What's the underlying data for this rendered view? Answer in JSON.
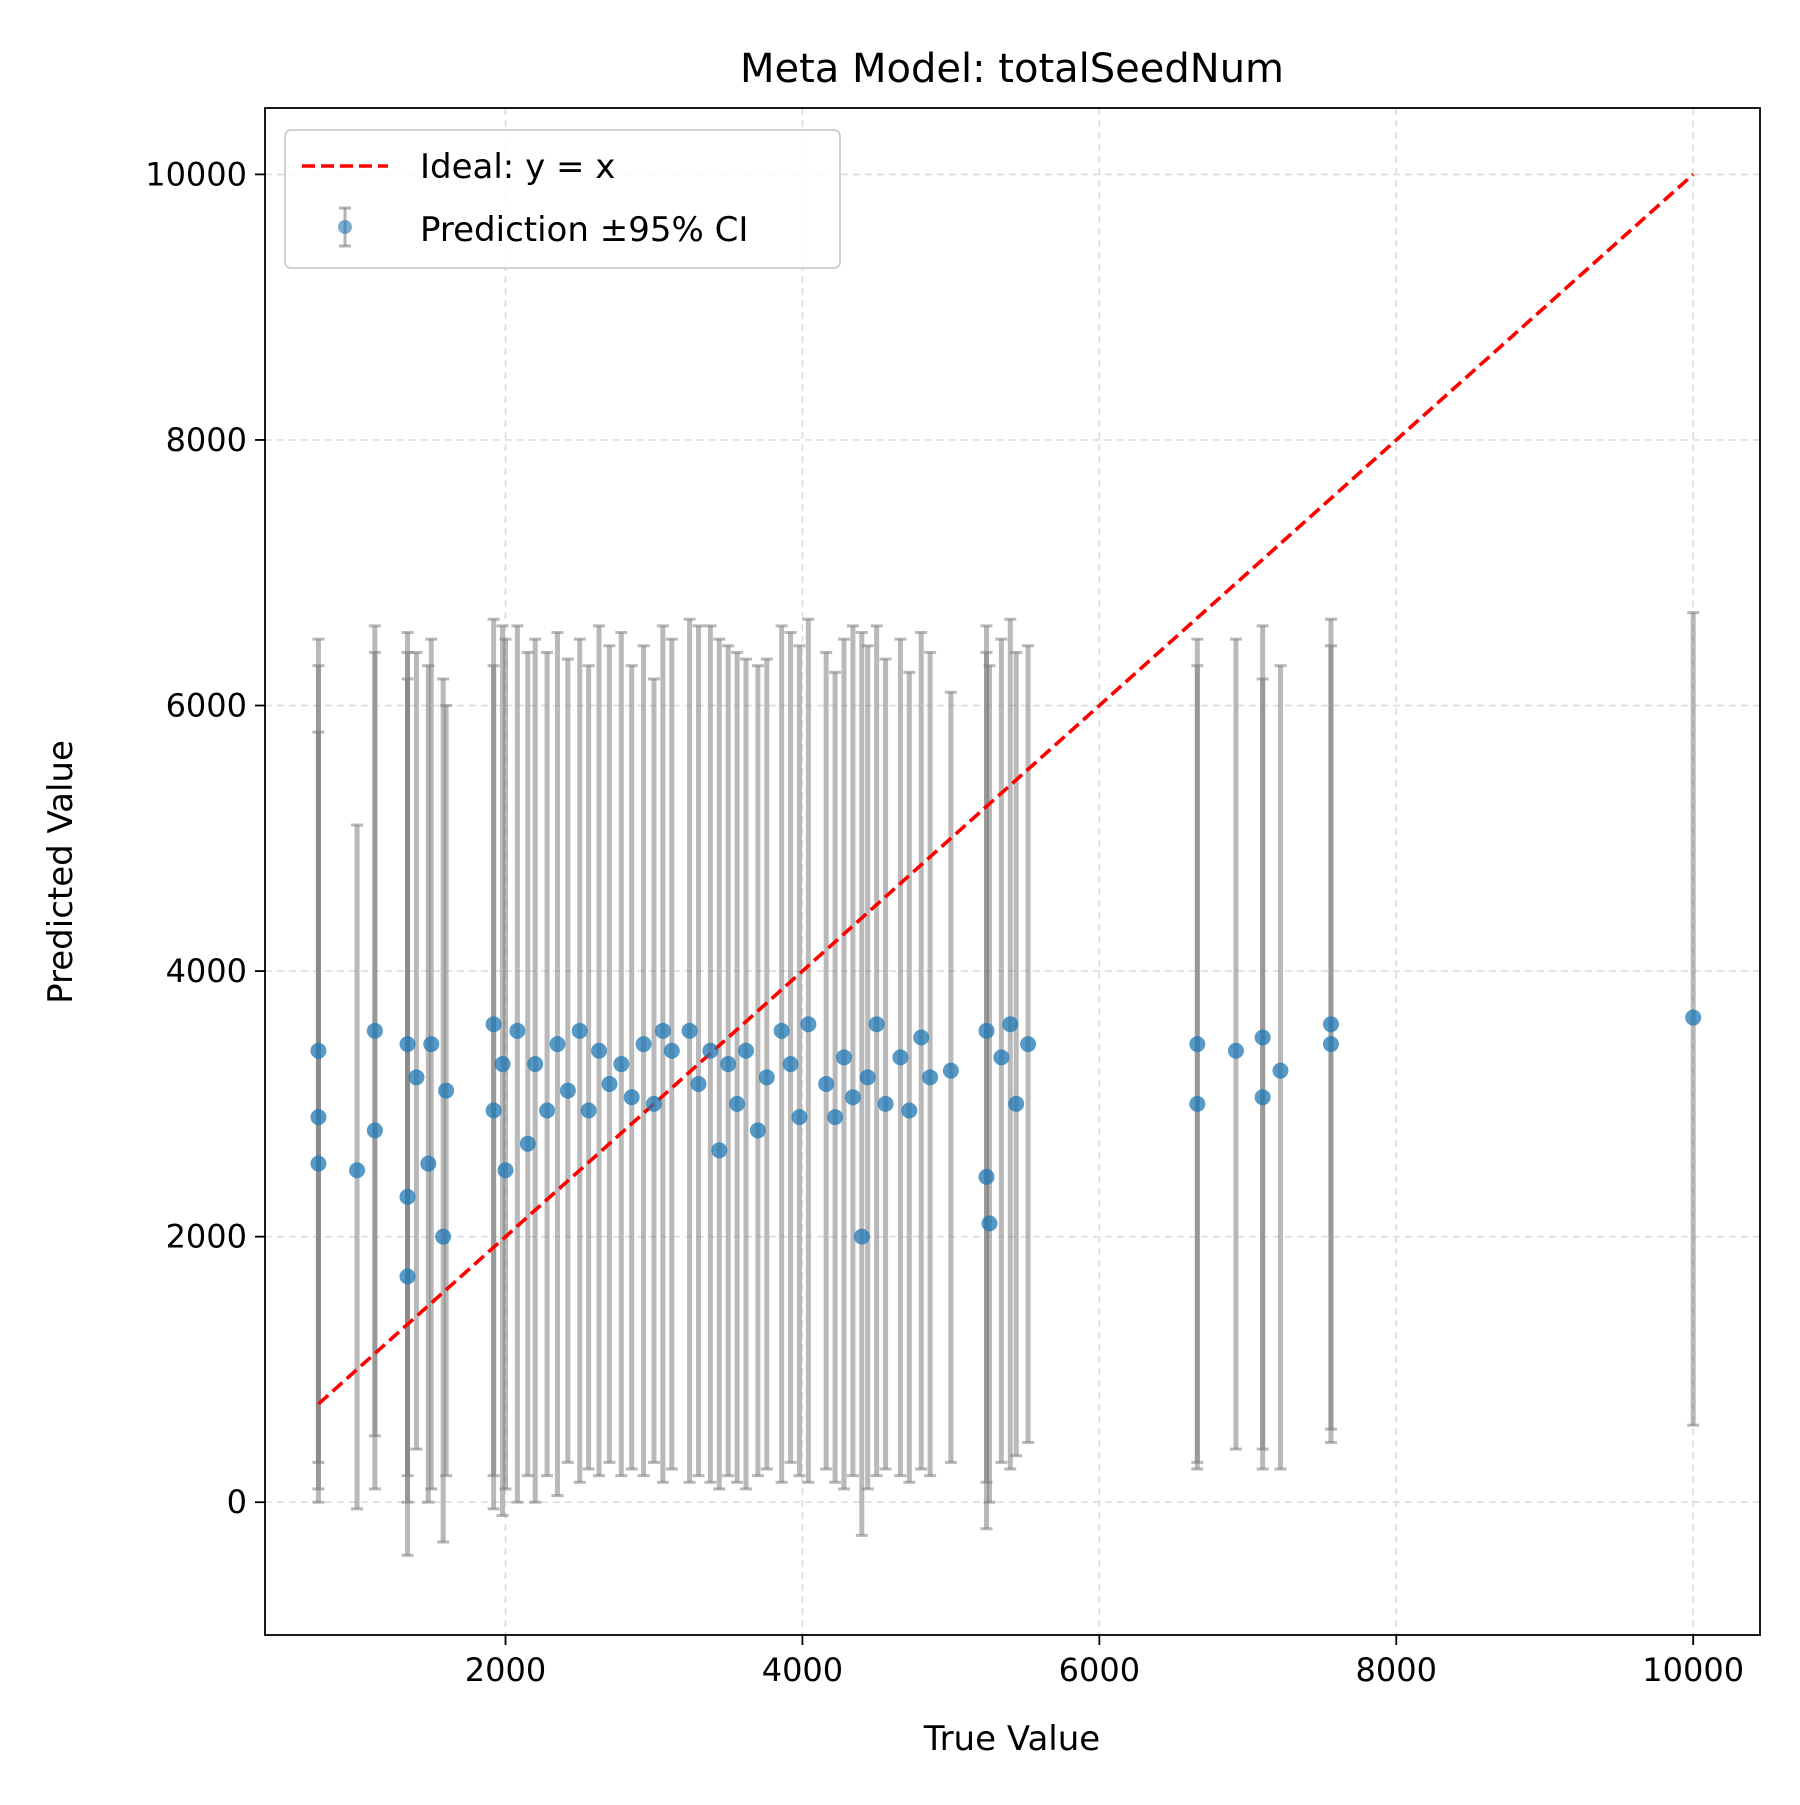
{
  "chart_data": {
    "type": "scatter",
    "title": "Meta Model: totalSeedNum",
    "xlabel": "True Value",
    "ylabel": "Predicted Value",
    "xlim": [
      380,
      10450
    ],
    "ylim": [
      -1000,
      10500
    ],
    "xticks": [
      2000,
      4000,
      6000,
      8000,
      10000
    ],
    "yticks": [
      0,
      2000,
      4000,
      6000,
      8000,
      10000
    ],
    "xtick_labels": [
      "2000",
      "4000",
      "6000",
      "8000",
      "10000"
    ],
    "ytick_labels": [
      "0",
      "2000",
      "4000",
      "6000",
      "8000",
      "10000"
    ],
    "grid": true,
    "legend_position": "top-left",
    "legend": {
      "ideal_label": "Ideal: y = x",
      "prediction_label": "Prediction ±95% CI"
    },
    "colors": {
      "points": "#1f77b4",
      "error_bars": "#808080",
      "ideal_line": "#ff0000",
      "grid": "#dddddd"
    },
    "series": [
      {
        "name": "Ideal: y = x",
        "kind": "line",
        "x": [
          740,
          10000
        ],
        "y": [
          740,
          10000
        ]
      },
      {
        "name": "Prediction ±95% CI",
        "kind": "errorbar",
        "points": [
          {
            "x": 740,
            "y": 3400,
            "low": 0,
            "high": 6500
          },
          {
            "x": 740,
            "y": 2900,
            "low": 100,
            "high": 6300
          },
          {
            "x": 740,
            "y": 2550,
            "low": 300,
            "high": 5800
          },
          {
            "x": 1000,
            "y": 2500,
            "low": -50,
            "high": 5100
          },
          {
            "x": 1120,
            "y": 3550,
            "low": 100,
            "high": 6600
          },
          {
            "x": 1120,
            "y": 2800,
            "low": 500,
            "high": 6400
          },
          {
            "x": 1340,
            "y": 3450,
            "low": -400,
            "high": 6550
          },
          {
            "x": 1340,
            "y": 2300,
            "low": 0,
            "high": 6200
          },
          {
            "x": 1340,
            "y": 1700,
            "low": 200,
            "high": 6400
          },
          {
            "x": 1400,
            "y": 3200,
            "low": 400,
            "high": 6400
          },
          {
            "x": 1480,
            "y": 2550,
            "low": 0,
            "high": 6300
          },
          {
            "x": 1500,
            "y": 3450,
            "low": 100,
            "high": 6500
          },
          {
            "x": 1580,
            "y": 2000,
            "low": -300,
            "high": 6200
          },
          {
            "x": 1600,
            "y": 3100,
            "low": 200,
            "high": 6000
          },
          {
            "x": 1920,
            "y": 3600,
            "low": -50,
            "high": 6650
          },
          {
            "x": 1920,
            "y": 2950,
            "low": 200,
            "high": 6300
          },
          {
            "x": 1980,
            "y": 3300,
            "low": -100,
            "high": 6600
          },
          {
            "x": 2000,
            "y": 2500,
            "low": 100,
            "high": 6500
          },
          {
            "x": 2080,
            "y": 3550,
            "low": 0,
            "high": 6600
          },
          {
            "x": 2150,
            "y": 2700,
            "low": 200,
            "high": 6400
          },
          {
            "x": 2200,
            "y": 3300,
            "low": 0,
            "high": 6500
          },
          {
            "x": 2280,
            "y": 2950,
            "low": 200,
            "high": 6400
          },
          {
            "x": 2350,
            "y": 3450,
            "low": 50,
            "high": 6550
          },
          {
            "x": 2420,
            "y": 3100,
            "low": 300,
            "high": 6350
          },
          {
            "x": 2500,
            "y": 3550,
            "low": 150,
            "high": 6500
          },
          {
            "x": 2560,
            "y": 2950,
            "low": 250,
            "high": 6300
          },
          {
            "x": 2630,
            "y": 3400,
            "low": 200,
            "high": 6600
          },
          {
            "x": 2700,
            "y": 3150,
            "low": 300,
            "high": 6450
          },
          {
            "x": 2780,
            "y": 3300,
            "low": 200,
            "high": 6550
          },
          {
            "x": 2850,
            "y": 3050,
            "low": 250,
            "high": 6300
          },
          {
            "x": 2930,
            "y": 3450,
            "low": 200,
            "high": 6450
          },
          {
            "x": 3000,
            "y": 3000,
            "low": 300,
            "high": 6200
          },
          {
            "x": 3060,
            "y": 3550,
            "low": 150,
            "high": 6600
          },
          {
            "x": 3120,
            "y": 3400,
            "low": 250,
            "high": 6500
          },
          {
            "x": 3240,
            "y": 3550,
            "low": 150,
            "high": 6650
          },
          {
            "x": 3300,
            "y": 3150,
            "low": 200,
            "high": 6600
          },
          {
            "x": 3380,
            "y": 3400,
            "low": 150,
            "high": 6600
          },
          {
            "x": 3440,
            "y": 2650,
            "low": 100,
            "high": 6500
          },
          {
            "x": 3500,
            "y": 3300,
            "low": 200,
            "high": 6450
          },
          {
            "x": 3560,
            "y": 3000,
            "low": 150,
            "high": 6400
          },
          {
            "x": 3620,
            "y": 3400,
            "low": 100,
            "high": 6350
          },
          {
            "x": 3700,
            "y": 2800,
            "low": 200,
            "high": 6300
          },
          {
            "x": 3760,
            "y": 3200,
            "low": 250,
            "high": 6350
          },
          {
            "x": 3860,
            "y": 3550,
            "low": 150,
            "high": 6600
          },
          {
            "x": 3920,
            "y": 3300,
            "low": 300,
            "high": 6550
          },
          {
            "x": 3980,
            "y": 2900,
            "low": 200,
            "high": 6450
          },
          {
            "x": 4040,
            "y": 3600,
            "low": 150,
            "high": 6650
          },
          {
            "x": 4160,
            "y": 3150,
            "low": 250,
            "high": 6400
          },
          {
            "x": 4220,
            "y": 2900,
            "low": 150,
            "high": 6250
          },
          {
            "x": 4280,
            "y": 3350,
            "low": 100,
            "high": 6500
          },
          {
            "x": 4340,
            "y": 3050,
            "low": 200,
            "high": 6600
          },
          {
            "x": 4400,
            "y": 2000,
            "low": -250,
            "high": 6550
          },
          {
            "x": 4440,
            "y": 3200,
            "low": 100,
            "high": 6450
          },
          {
            "x": 4500,
            "y": 3600,
            "low": 200,
            "high": 6600
          },
          {
            "x": 4560,
            "y": 3000,
            "low": 250,
            "high": 6350
          },
          {
            "x": 4660,
            "y": 3350,
            "low": 200,
            "high": 6500
          },
          {
            "x": 4720,
            "y": 2950,
            "low": 150,
            "high": 6250
          },
          {
            "x": 4800,
            "y": 3500,
            "low": 250,
            "high": 6550
          },
          {
            "x": 4860,
            "y": 3200,
            "low": 200,
            "high": 6400
          },
          {
            "x": 5000,
            "y": 3250,
            "low": 300,
            "high": 6100
          },
          {
            "x": 5240,
            "y": 3550,
            "low": -200,
            "high": 6600
          },
          {
            "x": 5240,
            "y": 2450,
            "low": 150,
            "high": 6400
          },
          {
            "x": 5260,
            "y": 2100,
            "low": 0,
            "high": 6300
          },
          {
            "x": 5340,
            "y": 3350,
            "low": 300,
            "high": 6500
          },
          {
            "x": 5400,
            "y": 3600,
            "low": 250,
            "high": 6650
          },
          {
            "x": 5440,
            "y": 3000,
            "low": 350,
            "high": 6400
          },
          {
            "x": 5520,
            "y": 3450,
            "low": 450,
            "high": 6450
          },
          {
            "x": 6660,
            "y": 3450,
            "low": 250,
            "high": 6500
          },
          {
            "x": 6660,
            "y": 3000,
            "low": 300,
            "high": 6300
          },
          {
            "x": 6920,
            "y": 3400,
            "low": 400,
            "high": 6500
          },
          {
            "x": 7100,
            "y": 3500,
            "low": 250,
            "high": 6600
          },
          {
            "x": 7100,
            "y": 3050,
            "low": 400,
            "high": 6200
          },
          {
            "x": 7220,
            "y": 3250,
            "low": 250,
            "high": 6300
          },
          {
            "x": 7560,
            "y": 3600,
            "low": 450,
            "high": 6650
          },
          {
            "x": 7560,
            "y": 3450,
            "low": 550,
            "high": 6450
          },
          {
            "x": 10000,
            "y": 3650,
            "low": 580,
            "high": 6700
          }
        ]
      }
    ]
  }
}
